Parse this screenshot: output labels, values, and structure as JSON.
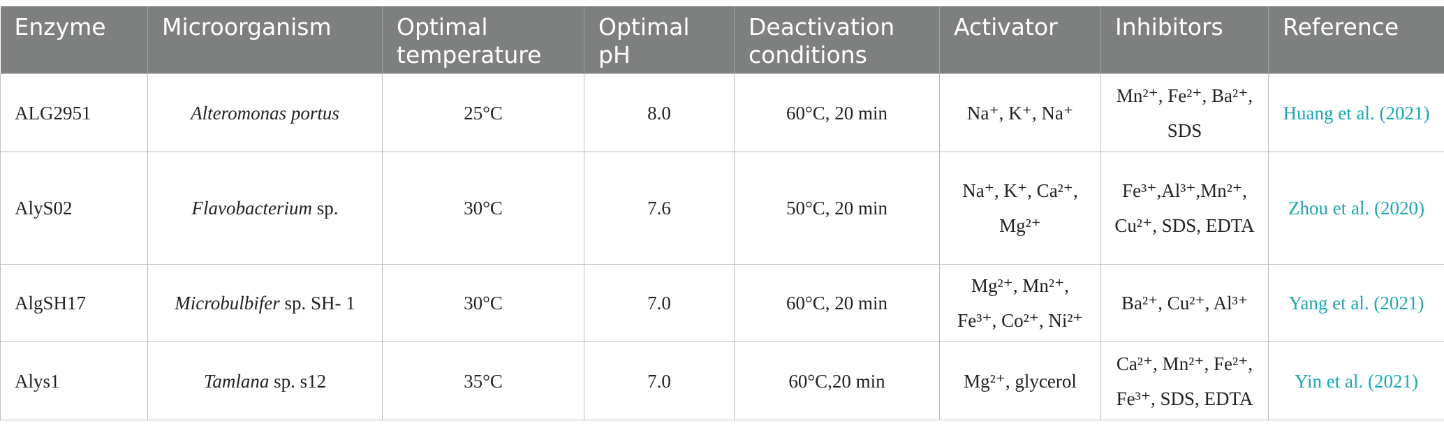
{
  "table": {
    "header": [
      "Enzyme",
      "Microorganism",
      "Optimal temperature",
      "Optimal pH",
      "Deactivation conditions",
      "Activator",
      "Inhibitors",
      "Reference"
    ],
    "rows": [
      {
        "enzyme": "ALG2951",
        "microorganism": {
          "genus": "Alteromonas portus"
        },
        "temperature": "25°C",
        "ph": "8.0",
        "deactivation": "60°C, 20 min",
        "activator": "Na⁺, K⁺, Na⁺",
        "inhibitors": "Mn²⁺, Fe²⁺, Ba²⁺, SDS",
        "reference": "Huang et al. (2021)"
      },
      {
        "enzyme": "AlyS02",
        "microorganism": {
          "genus": "Flavobacterium",
          "suffix": "sp."
        },
        "temperature": "30°C",
        "ph": "7.6",
        "deactivation": "50°C, 20 min",
        "activator": "Na⁺, K⁺, Ca²⁺, Mg²⁺",
        "inhibitors": "Fe³⁺,Al³⁺,Mn²⁺, Cu²⁺, SDS, EDTA",
        "reference": "Zhou et al. (2020)"
      },
      {
        "enzyme": "AlgSH17",
        "microorganism": {
          "genus": "Microbulbifer",
          "suffix": "sp. SH- 1"
        },
        "temperature": "30°C",
        "ph": "7.0",
        "deactivation": "60°C, 20 min",
        "activator": "Mg²⁺, Mn²⁺, Fe³⁺, Co²⁺, Ni²⁺",
        "inhibitors": "Ba²⁺, Cu²⁺, Al³⁺",
        "reference": "Yang et al. (2021)"
      },
      {
        "enzyme": "Alys1",
        "microorganism": {
          "genus": "Tamlana",
          "suffix": "sp. s12"
        },
        "temperature": "35°C",
        "ph": "7.0",
        "deactivation": "60°C,20 min",
        "activator": "Mg²⁺, glycerol",
        "inhibitors": "Ca²⁺, Mn²⁺, Fe²⁺, Fe³⁺, SDS, EDTA",
        "reference": "Yin et al. (2021)"
      }
    ]
  }
}
